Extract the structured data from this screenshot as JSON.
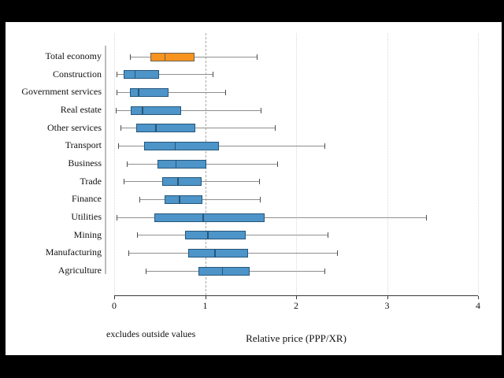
{
  "colors": {
    "page_background": "#000000",
    "canvas_background": "#ffffff",
    "box_fill": "#4d94c8",
    "box_border": "#26577a",
    "highlight_fill": "#f79420",
    "highlight_border": "#6e6152",
    "whisker_line": "#8f8f8f",
    "whisker_cap": "#4d4d4d",
    "axis_color": "#3a3a3a",
    "grid_dotted": "#d9d9d9",
    "refline_dashed": "#a8a8a8",
    "category_axis": "#bcbcbc"
  },
  "chart_data": {
    "type": "boxplot",
    "orientation": "horizontal",
    "title": "",
    "xlabel": "Relative price (PPP/XR)",
    "note": "excludes outside values",
    "xlim": [
      0,
      4
    ],
    "xticks": [
      0,
      1,
      2,
      3,
      4
    ],
    "refline_x": 1,
    "grid": "dotted vertical at integer ticks",
    "legend_position": "none",
    "categories": [
      "Total economy",
      "Construction",
      "Government services",
      "Real estate",
      "Other services",
      "Transport",
      "Business",
      "Trade",
      "Finance",
      "Utilities",
      "Mining",
      "Manufacturing",
      "Agriculture"
    ],
    "boxes": [
      {
        "category": "Total economy",
        "lo": 0.17,
        "q1": 0.4,
        "median": 0.56,
        "q3": 0.88,
        "hi": 1.57,
        "highlight": true
      },
      {
        "category": "Construction",
        "lo": 0.03,
        "q1": 0.1,
        "median": 0.23,
        "q3": 0.49,
        "hi": 1.08,
        "highlight": false
      },
      {
        "category": "Government services",
        "lo": 0.03,
        "q1": 0.17,
        "median": 0.27,
        "q3": 0.6,
        "hi": 1.22,
        "highlight": false
      },
      {
        "category": "Real estate",
        "lo": 0.02,
        "q1": 0.18,
        "median": 0.31,
        "q3": 0.74,
        "hi": 1.61,
        "highlight": false
      },
      {
        "category": "Other services",
        "lo": 0.07,
        "q1": 0.24,
        "median": 0.46,
        "q3": 0.89,
        "hi": 1.77,
        "highlight": false
      },
      {
        "category": "Transport",
        "lo": 0.04,
        "q1": 0.33,
        "median": 0.67,
        "q3": 1.15,
        "hi": 2.31,
        "highlight": false
      },
      {
        "category": "Business",
        "lo": 0.14,
        "q1": 0.48,
        "median": 0.68,
        "q3": 1.01,
        "hi": 1.79,
        "highlight": false
      },
      {
        "category": "Trade",
        "lo": 0.1,
        "q1": 0.53,
        "median": 0.7,
        "q3": 0.96,
        "hi": 1.59,
        "highlight": false
      },
      {
        "category": "Finance",
        "lo": 0.28,
        "q1": 0.55,
        "median": 0.72,
        "q3": 0.97,
        "hi": 1.6,
        "highlight": false
      },
      {
        "category": "Utilities",
        "lo": 0.03,
        "q1": 0.44,
        "median": 0.98,
        "q3": 1.65,
        "hi": 3.43,
        "highlight": false
      },
      {
        "category": "Mining",
        "lo": 0.25,
        "q1": 0.78,
        "median": 1.03,
        "q3": 1.45,
        "hi": 2.35,
        "highlight": false
      },
      {
        "category": "Manufacturing",
        "lo": 0.16,
        "q1": 0.81,
        "median": 1.11,
        "q3": 1.47,
        "hi": 2.45,
        "highlight": false
      },
      {
        "category": "Agriculture",
        "lo": 0.35,
        "q1": 0.93,
        "median": 1.19,
        "q3": 1.49,
        "hi": 2.31,
        "highlight": false
      }
    ]
  }
}
